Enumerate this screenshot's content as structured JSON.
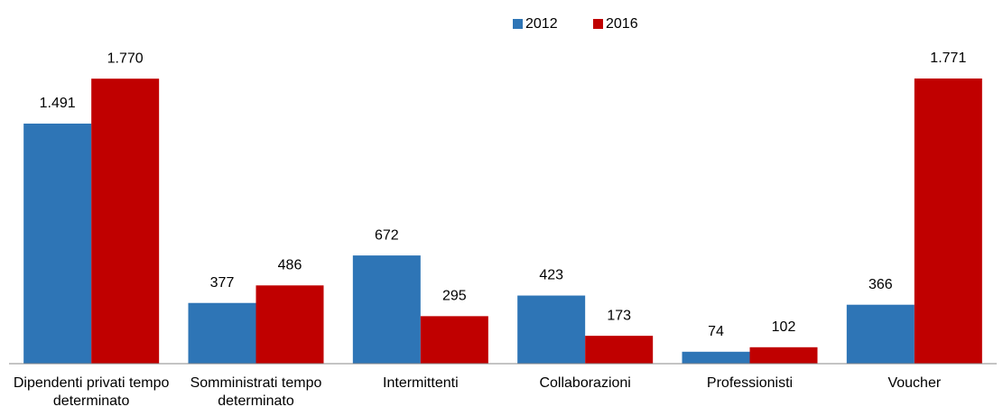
{
  "chart_data": {
    "type": "bar",
    "categories": [
      "Dipendenti privati tempo determinato",
      "Somministrati tempo determinato",
      "Intermittenti",
      "Collaborazioni",
      "Professionisti",
      "Voucher"
    ],
    "series": [
      {
        "name": "2012",
        "color": "#2e75b6",
        "values": [
          1491,
          377,
          672,
          423,
          74,
          366
        ],
        "value_labels": [
          "1.491",
          "377",
          "672",
          "423",
          "74",
          "366"
        ]
      },
      {
        "name": "2016",
        "color": "#c00000",
        "values": [
          1770,
          486,
          295,
          173,
          102,
          1771
        ],
        "value_labels": [
          "1.770",
          "486",
          "295",
          "173",
          "102",
          "1.771"
        ]
      }
    ],
    "legend": "top"
  }
}
